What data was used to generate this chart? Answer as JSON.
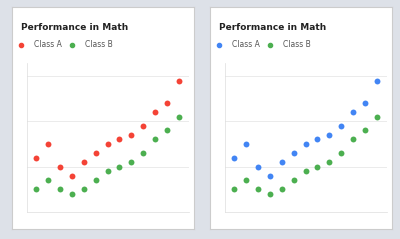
{
  "title": "Performance in Math",
  "legend_labels": [
    "Class A",
    "Class B"
  ],
  "x": [
    1,
    2,
    3,
    4,
    5,
    6,
    7,
    8,
    9,
    10,
    11,
    12,
    13
  ],
  "class_a": [
    62,
    65,
    60,
    58,
    61,
    63,
    65,
    66,
    67,
    69,
    72,
    74,
    79
  ],
  "class_b": [
    55,
    57,
    55,
    54,
    55,
    57,
    59,
    60,
    61,
    63,
    66,
    68,
    71
  ],
  "left_colors": [
    "#f44336",
    "#4caf50"
  ],
  "right_colors": [
    "#4285f4",
    "#4caf50"
  ],
  "card_bg": "#ffffff",
  "outer_bg": "#dde1e8",
  "title_fontsize": 6.5,
  "legend_fontsize": 5.5,
  "marker_size": 18,
  "ylim": [
    50,
    83
  ],
  "xlim": [
    0.2,
    13.8
  ]
}
